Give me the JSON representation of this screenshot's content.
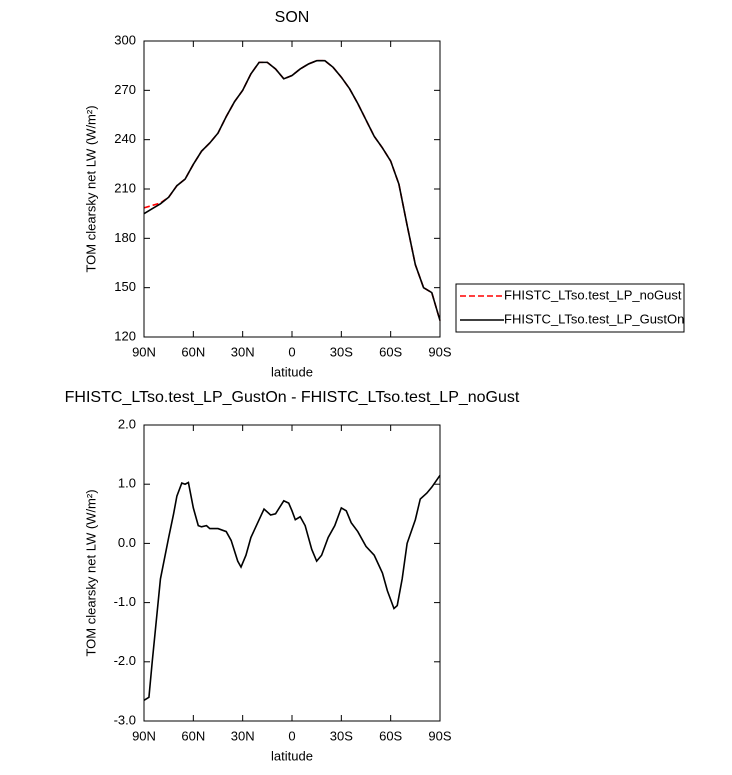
{
  "chart_data": [
    {
      "type": "line",
      "title": "SON",
      "xlabel": "latitude",
      "ylabel": "TOM clearsky net LW (W/m²)",
      "x": [
        90,
        85,
        80,
        75,
        70,
        65,
        60,
        55,
        50,
        45,
        40,
        35,
        30,
        25,
        20,
        15,
        10,
        5,
        0,
        -5,
        -10,
        -15,
        -20,
        -25,
        -30,
        -35,
        -40,
        -45,
        -50,
        -55,
        -60,
        -65,
        -70,
        -75,
        -80,
        -85,
        -90
      ],
      "series": [
        {
          "name": "FHISTC_LTso.test_LP_noGust",
          "color": "#ff0000",
          "line_style": "dashed",
          "values": [
            198.5,
            200,
            201.5,
            205,
            212,
            216,
            225,
            233,
            238,
            244,
            254,
            263,
            270,
            280,
            287,
            287,
            283,
            277,
            279,
            283,
            286,
            288,
            288,
            284,
            278,
            271,
            262,
            252,
            242,
            235,
            227,
            213,
            188,
            164,
            150,
            147,
            130
          ]
        },
        {
          "name": "FHISTC_LTso.test_LP_GustOn",
          "color": "#000000",
          "line_style": "solid",
          "values": [
            195,
            198,
            201,
            205,
            212,
            216,
            225,
            233,
            238,
            244,
            254,
            263,
            270,
            280,
            287,
            287,
            283,
            277,
            279,
            283,
            286,
            288,
            288,
            284,
            278,
            271,
            262,
            252,
            242,
            235,
            227,
            213,
            188,
            164,
            150,
            147,
            130
          ]
        }
      ],
      "xlim": [
        90,
        -90
      ],
      "xticks": [
        {
          "value": 90,
          "label": "90N"
        },
        {
          "value": 60,
          "label": "60N"
        },
        {
          "value": 30,
          "label": "30N"
        },
        0,
        {
          "value": -30,
          "label": "30S"
        },
        {
          "value": -60,
          "label": "60S"
        },
        {
          "value": -90,
          "label": "90S"
        }
      ],
      "ylim": [
        120,
        300
      ],
      "yticks": [
        120,
        150,
        180,
        210,
        240,
        270,
        300
      ],
      "legend": "right"
    },
    {
      "type": "line",
      "title": "FHISTC_LTso.test_LP_GustOn - FHISTC_LTso.test_LP_noGust",
      "xlabel": "latitude",
      "ylabel": "TOM clearsky net LW (W/m²)",
      "x": [
        90,
        87,
        85,
        80,
        75,
        72,
        70,
        67,
        65,
        63,
        60,
        57,
        55,
        52,
        50,
        45,
        40,
        37,
        33,
        31,
        28,
        25,
        20,
        17,
        13,
        10,
        5,
        2,
        0,
        -2,
        -5,
        -8,
        -12,
        -15,
        -18,
        -22,
        -26,
        -30,
        -33,
        -36,
        -40,
        -45,
        -50,
        -55,
        -58,
        -62,
        -64,
        -67,
        -70,
        -75,
        -78,
        -82,
        -85,
        -90
      ],
      "series": [
        {
          "color": "#000000",
          "line_style": "solid",
          "values": [
            -2.65,
            -2.6,
            -2.0,
            -0.6,
            0.1,
            0.5,
            0.8,
            1.02,
            1.0,
            1.03,
            0.6,
            0.3,
            0.28,
            0.3,
            0.25,
            0.25,
            0.2,
            0.05,
            -0.3,
            -0.4,
            -0.2,
            0.1,
            0.4,
            0.58,
            0.48,
            0.5,
            0.72,
            0.68,
            0.55,
            0.4,
            0.45,
            0.3,
            -0.1,
            -0.3,
            -0.2,
            0.1,
            0.3,
            0.6,
            0.55,
            0.35,
            0.2,
            -0.05,
            -0.2,
            -0.5,
            -0.8,
            -1.1,
            -1.05,
            -0.6,
            0.0,
            0.4,
            0.75,
            0.85,
            0.95,
            1.15
          ]
        }
      ],
      "xlim": [
        90,
        -90
      ],
      "xticks": [
        {
          "value": 90,
          "label": "90N"
        },
        {
          "value": 60,
          "label": "60N"
        },
        {
          "value": 30,
          "label": "30N"
        },
        0,
        {
          "value": -30,
          "label": "30S"
        },
        {
          "value": -60,
          "label": "60S"
        },
        {
          "value": -90,
          "label": "90S"
        }
      ],
      "ylim": [
        -3,
        2
      ],
      "yticks": [
        {
          "value": -3,
          "label": "-3.0"
        },
        {
          "value": -2,
          "label": "-2.0"
        },
        {
          "value": -1,
          "label": "-1.0"
        },
        {
          "value": 0,
          "label": "0.0"
        },
        {
          "value": 1,
          "label": "1.0"
        },
        {
          "value": 2,
          "label": "2.0"
        }
      ]
    }
  ]
}
